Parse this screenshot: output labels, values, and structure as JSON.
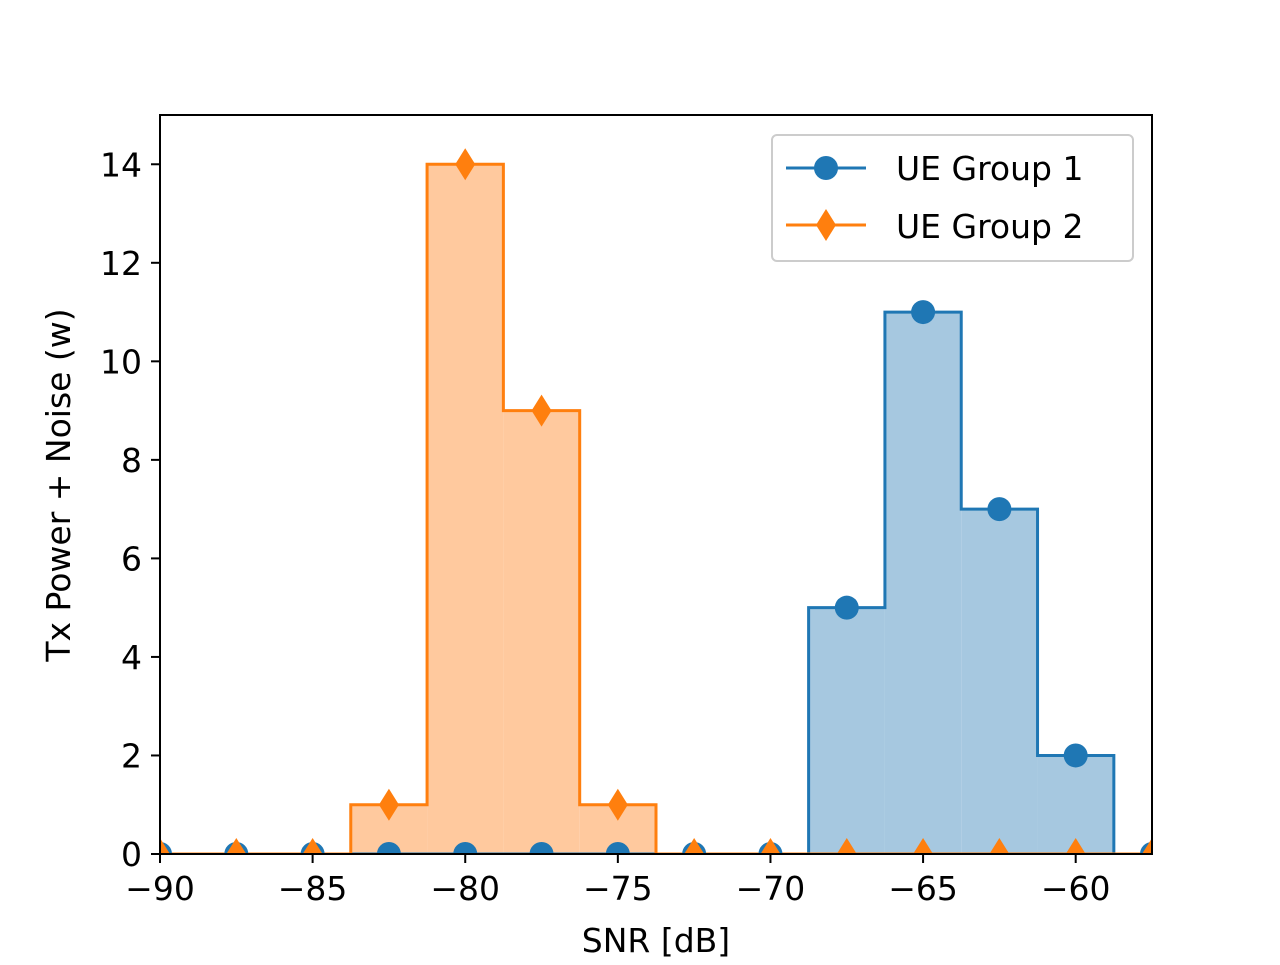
{
  "chart_data": {
    "type": "step-histogram",
    "title": "",
    "xlabel": "SNR [dB]",
    "ylabel": "Tx Power + Noise (w)",
    "xlim": [
      -90,
      -57.5
    ],
    "ylim": [
      0,
      15
    ],
    "x_ticks": [
      -90,
      -85,
      -80,
      -75,
      -70,
      -65,
      -60
    ],
    "y_ticks": [
      0,
      2,
      4,
      6,
      8,
      10,
      12,
      14
    ],
    "x_tick_labels": [
      "−90",
      "−85",
      "−80",
      "−75",
      "−70",
      "−65",
      "−60"
    ],
    "y_tick_labels": [
      "0",
      "2",
      "4",
      "6",
      "8",
      "10",
      "12",
      "14"
    ],
    "bin_edges": [
      -91.25,
      -88.75,
      -86.25,
      -83.75,
      -81.25,
      -78.75,
      -76.25,
      -73.75,
      -71.25,
      -68.75,
      -66.25,
      -63.75,
      -61.25,
      -58.75,
      -56.25
    ],
    "x": [
      -90,
      -87.5,
      -85,
      -82.5,
      -80,
      -77.5,
      -75,
      -72.5,
      -70,
      -67.5,
      -65,
      -62.5,
      -60,
      -57.5
    ],
    "series": [
      {
        "name": "UE Group 1",
        "color": "#1f77b4",
        "fill": "#a6c8e0",
        "marker": "circle",
        "values": [
          0,
          0,
          0,
          0,
          0,
          0,
          0,
          0,
          0,
          5,
          11,
          7,
          2,
          0
        ]
      },
      {
        "name": "UE Group 2",
        "color": "#ff7f0e",
        "fill": "#ffc99e",
        "marker": "thin-diamond",
        "values": [
          0,
          0,
          0,
          1,
          14,
          9,
          1,
          0,
          0,
          0,
          0,
          0,
          0,
          0
        ]
      }
    ],
    "grid": false,
    "legend_position": "upper right"
  }
}
